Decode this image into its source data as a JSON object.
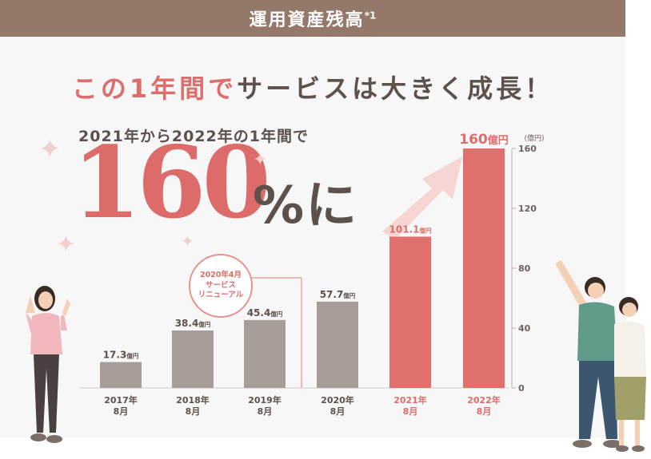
{
  "header": {
    "title": "運用資産残高",
    "footnote": "*1"
  },
  "headline": {
    "accent": "この1年間で",
    "rest": "サービスは大きく成長！"
  },
  "growth": {
    "subline": "2021年から2022年の1年間で",
    "number": "160",
    "suffix": "%に"
  },
  "renewal": {
    "line1": "2020年4月",
    "line2": "サービス",
    "line3": "リニューアル"
  },
  "colors": {
    "header": "#94786a",
    "accent": "#de6e6c",
    "bar_gray": "#a69d98",
    "bar_red": "#e06f6d",
    "text": "#5d514b"
  },
  "chart_data": {
    "type": "bar",
    "title": "運用資産残高",
    "ylabel": "(億円)",
    "ylim": [
      0,
      160
    ],
    "yticks": [
      {
        "value": 0,
        "label": "0"
      },
      {
        "value": 40,
        "label": "40"
      },
      {
        "value": 80,
        "label": "80"
      },
      {
        "value": 120,
        "label": "120"
      },
      {
        "value": 160,
        "label": "160"
      }
    ],
    "categories": [
      {
        "year": "2017年",
        "month": "8月"
      },
      {
        "year": "2018年",
        "month": "8月"
      },
      {
        "year": "2019年",
        "month": "8月"
      },
      {
        "year": "2020年",
        "month": "8月"
      },
      {
        "year": "2021年",
        "month": "8月"
      },
      {
        "year": "2022年",
        "month": "8月"
      }
    ],
    "values": [
      17.3,
      38.4,
      45.4,
      57.7,
      101.1,
      160
    ],
    "labels": [
      {
        "num": "17.3",
        "unit": "億円"
      },
      {
        "num": "38.4",
        "unit": "億円"
      },
      {
        "num": "45.4",
        "unit": "億円"
      },
      {
        "num": "57.7",
        "unit": "億円"
      },
      {
        "num": "101.1",
        "unit": "億円"
      },
      {
        "num": "160",
        "unit": "億円"
      }
    ],
    "highlight": [
      false,
      false,
      false,
      false,
      true,
      true
    ]
  }
}
